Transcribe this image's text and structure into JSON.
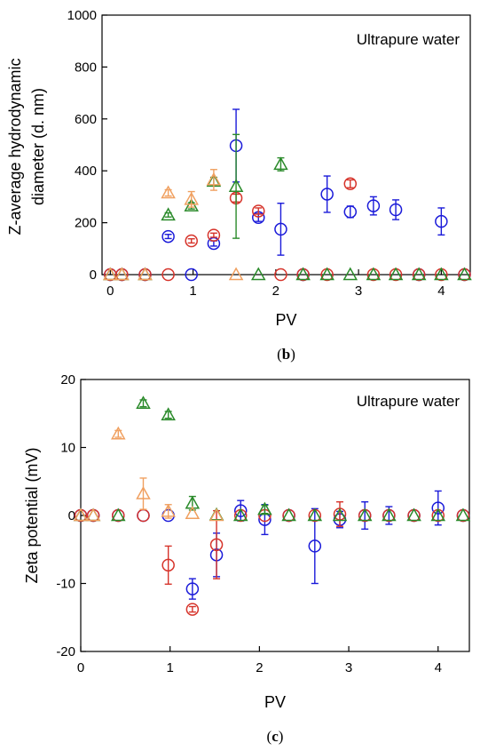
{
  "colors": {
    "blue": "#1a1ad9",
    "red": "#d6332a",
    "green": "#2a8a2a",
    "orange": "#f0a060"
  },
  "chart_data": [
    {
      "type": "scatter",
      "panel_label": "(b)",
      "panel_letter": "b",
      "annotation": "Ultrapure water",
      "xlabel": "PV",
      "ylabel": "Z-average hydrodynamic diameter (d. nm)",
      "ylabel_lines": [
        "Z-average hydrodynamic",
        "diameter (d. nm)"
      ],
      "xlim": [
        -0.1,
        4.35
      ],
      "ylim": [
        0,
        1000
      ],
      "xticks": [
        0,
        1,
        2,
        3,
        4
      ],
      "yticks": [
        0,
        200,
        400,
        600,
        800,
        1000
      ],
      "grid": false,
      "series": [
        {
          "color": "blue",
          "marker": "circle",
          "points": [
            {
              "x": 0,
              "y": 0
            },
            {
              "x": 0.14,
              "y": 0
            },
            {
              "x": 0.42,
              "y": 0
            },
            {
              "x": 0.7,
              "y": 147,
              "err": 8
            },
            {
              "x": 0.98,
              "y": 0
            },
            {
              "x": 1.25,
              "y": 120,
              "err": 10
            },
            {
              "x": 1.52,
              "y": 497,
              "err": 140
            },
            {
              "x": 1.79,
              "y": 220,
              "err": 15
            },
            {
              "x": 2.06,
              "y": 175,
              "err": 100
            },
            {
              "x": 2.33,
              "y": 0
            },
            {
              "x": 2.62,
              "y": 310,
              "err": 70
            },
            {
              "x": 2.9,
              "y": 242,
              "err": 22
            },
            {
              "x": 3.18,
              "y": 265,
              "err": 35
            },
            {
              "x": 3.45,
              "y": 250,
              "err": 38
            },
            {
              "x": 3.73,
              "y": 0
            },
            {
              "x": 4.0,
              "y": 205,
              "err": 52
            },
            {
              "x": 4.28,
              "y": 0
            }
          ]
        },
        {
          "color": "red",
          "marker": "circle",
          "points": [
            {
              "x": 0,
              "y": 0
            },
            {
              "x": 0.14,
              "y": 0
            },
            {
              "x": 0.42,
              "y": 0
            },
            {
              "x": 0.7,
              "y": 0
            },
            {
              "x": 0.98,
              "y": 130,
              "err": 8
            },
            {
              "x": 1.25,
              "y": 152,
              "err": 8
            },
            {
              "x": 1.52,
              "y": 295,
              "err": 15
            },
            {
              "x": 1.79,
              "y": 245,
              "err": 12
            },
            {
              "x": 2.06,
              "y": 0
            },
            {
              "x": 2.33,
              "y": 0
            },
            {
              "x": 2.62,
              "y": 0
            },
            {
              "x": 2.9,
              "y": 350,
              "err": 15
            },
            {
              "x": 3.18,
              "y": 0
            },
            {
              "x": 3.45,
              "y": 0
            },
            {
              "x": 3.73,
              "y": 0
            },
            {
              "x": 4.0,
              "y": 0
            },
            {
              "x": 4.28,
              "y": 0
            }
          ]
        },
        {
          "color": "green",
          "marker": "triangle",
          "points": [
            {
              "x": 0,
              "y": 0
            },
            {
              "x": 0.14,
              "y": 0
            },
            {
              "x": 0.42,
              "y": 0
            },
            {
              "x": 0.7,
              "y": 230,
              "err": 8
            },
            {
              "x": 0.98,
              "y": 265,
              "err": 12
            },
            {
              "x": 1.25,
              "y": 360,
              "err": 15
            },
            {
              "x": 1.52,
              "y": 340,
              "err": 200
            },
            {
              "x": 1.79,
              "y": 0
            },
            {
              "x": 2.06,
              "y": 425,
              "err": 25
            },
            {
              "x": 2.33,
              "y": 0
            },
            {
              "x": 2.62,
              "y": 0
            },
            {
              "x": 2.9,
              "y": 0
            },
            {
              "x": 3.18,
              "y": 0
            },
            {
              "x": 3.45,
              "y": 0
            },
            {
              "x": 3.73,
              "y": 0
            },
            {
              "x": 4.0,
              "y": 0
            },
            {
              "x": 4.28,
              "y": 0
            }
          ]
        },
        {
          "color": "orange",
          "marker": "triangle",
          "points": [
            {
              "x": 0,
              "y": 0
            },
            {
              "x": 0.14,
              "y": 0
            },
            {
              "x": 0.42,
              "y": 0
            },
            {
              "x": 0.7,
              "y": 315,
              "err": 12
            },
            {
              "x": 0.98,
              "y": 290,
              "err": 30
            },
            {
              "x": 1.25,
              "y": 365,
              "err": 40
            },
            {
              "x": 1.52,
              "y": 0
            }
          ]
        }
      ]
    },
    {
      "type": "scatter",
      "panel_label": "(c)",
      "panel_letter": "c",
      "annotation": "Ultrapure water",
      "xlabel": "PV",
      "ylabel": "Zeta potential (mV)",
      "xlim": [
        0,
        4.35
      ],
      "ylim": [
        -20,
        20
      ],
      "xticks": [
        0,
        1,
        2,
        3,
        4
      ],
      "yticks": [
        -20,
        -10,
        0,
        10,
        20
      ],
      "grid": false,
      "series": [
        {
          "color": "blue",
          "marker": "circle",
          "points": [
            {
              "x": 0,
              "y": 0
            },
            {
              "x": 0.14,
              "y": 0
            },
            {
              "x": 0.42,
              "y": 0
            },
            {
              "x": 0.7,
              "y": 0
            },
            {
              "x": 0.98,
              "y": 0
            },
            {
              "x": 1.25,
              "y": -10.8,
              "err": 1.5
            },
            {
              "x": 1.52,
              "y": -5.8,
              "err": 3.2
            },
            {
              "x": 1.79,
              "y": 0.7,
              "err": 1.5
            },
            {
              "x": 2.06,
              "y": -0.6,
              "err": 2.2
            },
            {
              "x": 2.33,
              "y": 0
            },
            {
              "x": 2.62,
              "y": -4.5,
              "err": 5.5
            },
            {
              "x": 2.9,
              "y": -0.6,
              "err": 1.2
            },
            {
              "x": 3.18,
              "y": 0,
              "err": 2.0
            },
            {
              "x": 3.45,
              "y": 0,
              "err": 1.3
            },
            {
              "x": 3.73,
              "y": 0
            },
            {
              "x": 4.0,
              "y": 1.1,
              "err": 2.5
            },
            {
              "x": 4.28,
              "y": 0
            }
          ]
        },
        {
          "color": "red",
          "marker": "circle",
          "points": [
            {
              "x": 0,
              "y": 0
            },
            {
              "x": 0.14,
              "y": 0
            },
            {
              "x": 0.42,
              "y": 0
            },
            {
              "x": 0.7,
              "y": 0
            },
            {
              "x": 0.98,
              "y": -7.3,
              "err": 2.8
            },
            {
              "x": 1.25,
              "y": -13.8,
              "err": 0.4
            },
            {
              "x": 1.52,
              "y": -4.3,
              "err": 5.0
            },
            {
              "x": 1.79,
              "y": 0
            },
            {
              "x": 2.06,
              "y": 0
            },
            {
              "x": 2.33,
              "y": 0
            },
            {
              "x": 2.62,
              "y": 0
            },
            {
              "x": 2.9,
              "y": 0.2,
              "err": 1.8
            },
            {
              "x": 3.18,
              "y": 0
            },
            {
              "x": 3.45,
              "y": 0
            },
            {
              "x": 3.73,
              "y": 0
            },
            {
              "x": 4.0,
              "y": 0
            },
            {
              "x": 4.28,
              "y": 0
            }
          ]
        },
        {
          "color": "green",
          "marker": "triangle",
          "points": [
            {
              "x": 0,
              "y": 0
            },
            {
              "x": 0.14,
              "y": 0
            },
            {
              "x": 0.42,
              "y": 0
            },
            {
              "x": 0.7,
              "y": 16.5,
              "err": 0.5
            },
            {
              "x": 0.98,
              "y": 14.8,
              "err": 0.5
            },
            {
              "x": 1.25,
              "y": 1.8,
              "err": 1.0
            },
            {
              "x": 1.52,
              "y": 0.1
            },
            {
              "x": 1.79,
              "y": 0
            },
            {
              "x": 2.06,
              "y": 0.9,
              "err": 0.6
            },
            {
              "x": 2.33,
              "y": 0
            },
            {
              "x": 2.62,
              "y": 0
            },
            {
              "x": 2.9,
              "y": 0
            },
            {
              "x": 3.18,
              "y": 0
            },
            {
              "x": 3.45,
              "y": 0
            },
            {
              "x": 3.73,
              "y": 0
            },
            {
              "x": 4.0,
              "y": 0
            },
            {
              "x": 4.28,
              "y": 0
            }
          ]
        },
        {
          "color": "orange",
          "marker": "triangle",
          "points": [
            {
              "x": 0,
              "y": 0
            },
            {
              "x": 0.14,
              "y": 0
            },
            {
              "x": 0.42,
              "y": 12.0,
              "err": 0.5
            },
            {
              "x": 0.7,
              "y": 3.2,
              "err": 2.3
            },
            {
              "x": 0.98,
              "y": 0.6,
              "err": 1.0
            },
            {
              "x": 1.25,
              "y": 0.3
            },
            {
              "x": 1.52,
              "y": 0
            }
          ]
        }
      ]
    }
  ]
}
